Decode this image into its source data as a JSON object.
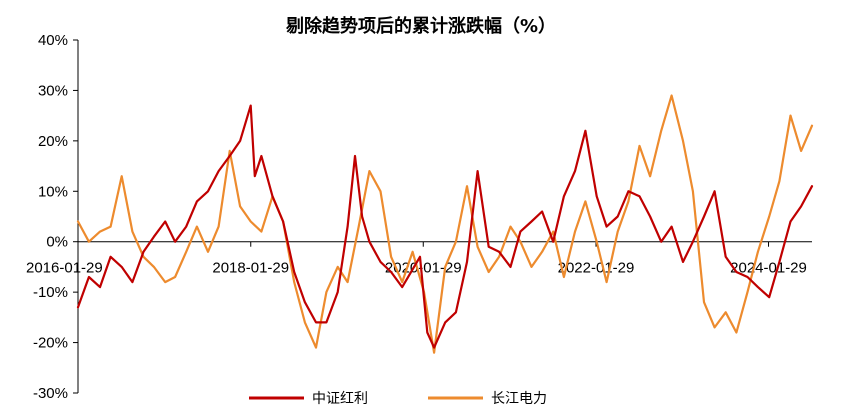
{
  "chart_data": {
    "type": "line",
    "title": "剔除趋势项后的累计涨跌幅（%）",
    "xlabel": "",
    "ylabel": "",
    "ylim": [
      -30,
      40
    ],
    "y_ticks": [
      "40%",
      "30%",
      "20%",
      "10%",
      "0%",
      "-10%",
      "-20%",
      "-30%"
    ],
    "y_tick_values": [
      40,
      30,
      20,
      10,
      0,
      -10,
      -20,
      -30
    ],
    "x_range": [
      "2016-01-29",
      "2024-07-31"
    ],
    "x_ticks": [
      "2016-01-29",
      "2018-01-29",
      "2020-01-29",
      "2022-01-29",
      "2024-01-29"
    ],
    "legend_position": "bottom",
    "colors": {
      "中证红利": "#c00000",
      "长江电力": "#ed8b2e"
    },
    "series": [
      {
        "name": "中证红利",
        "color": "#c00000",
        "points": [
          [
            "2016-01-29",
            -13
          ],
          [
            "2016-03-15",
            -7
          ],
          [
            "2016-05-01",
            -9
          ],
          [
            "2016-06-15",
            -3
          ],
          [
            "2016-08-01",
            -5
          ],
          [
            "2016-09-15",
            -8
          ],
          [
            "2016-11-01",
            -2
          ],
          [
            "2016-12-15",
            1
          ],
          [
            "2017-02-01",
            4
          ],
          [
            "2017-03-15",
            0
          ],
          [
            "2017-05-01",
            3
          ],
          [
            "2017-06-15",
            8
          ],
          [
            "2017-08-01",
            10
          ],
          [
            "2017-09-15",
            14
          ],
          [
            "2017-11-01",
            17
          ],
          [
            "2017-12-15",
            20
          ],
          [
            "2018-01-29",
            27
          ],
          [
            "2018-02-15",
            13
          ],
          [
            "2018-03-15",
            17
          ],
          [
            "2018-05-01",
            9
          ],
          [
            "2018-06-15",
            4
          ],
          [
            "2018-08-01",
            -6
          ],
          [
            "2018-09-15",
            -12
          ],
          [
            "2018-11-01",
            -16
          ],
          [
            "2018-12-15",
            -16
          ],
          [
            "2019-02-01",
            -10
          ],
          [
            "2019-03-15",
            3
          ],
          [
            "2019-04-15",
            17
          ],
          [
            "2019-05-15",
            5
          ],
          [
            "2019-06-15",
            0
          ],
          [
            "2019-08-01",
            -4
          ],
          [
            "2019-09-15",
            -6
          ],
          [
            "2019-11-01",
            -9
          ],
          [
            "2020-01-15",
            -3
          ],
          [
            "2020-02-15",
            -18
          ],
          [
            "2020-03-15",
            -21
          ],
          [
            "2020-05-01",
            -16
          ],
          [
            "2020-06-15",
            -14
          ],
          [
            "2020-08-01",
            -4
          ],
          [
            "2020-09-15",
            14
          ],
          [
            "2020-11-01",
            -1
          ],
          [
            "2020-12-15",
            -2
          ],
          [
            "2021-02-01",
            -5
          ],
          [
            "2021-03-15",
            2
          ],
          [
            "2021-05-01",
            4
          ],
          [
            "2021-06-15",
            6
          ],
          [
            "2021-08-01",
            0
          ],
          [
            "2021-09-15",
            9
          ],
          [
            "2021-11-01",
            14
          ],
          [
            "2021-12-15",
            22
          ],
          [
            "2022-02-01",
            9
          ],
          [
            "2022-03-15",
            3
          ],
          [
            "2022-05-01",
            5
          ],
          [
            "2022-06-15",
            10
          ],
          [
            "2022-08-01",
            9
          ],
          [
            "2022-09-15",
            5
          ],
          [
            "2022-11-01",
            0
          ],
          [
            "2022-12-15",
            3
          ],
          [
            "2023-02-01",
            -4
          ],
          [
            "2023-03-15",
            0
          ],
          [
            "2023-05-01",
            5
          ],
          [
            "2023-06-15",
            10
          ],
          [
            "2023-08-01",
            -3
          ],
          [
            "2023-09-15",
            -6
          ],
          [
            "2023-11-01",
            -7
          ],
          [
            "2023-12-15",
            -9
          ],
          [
            "2024-02-01",
            -11
          ],
          [
            "2024-03-15",
            -4
          ],
          [
            "2024-05-01",
            4
          ],
          [
            "2024-06-15",
            7
          ],
          [
            "2024-07-31",
            11
          ]
        ]
      },
      {
        "name": "长江电力",
        "color": "#ed8b2e",
        "points": [
          [
            "2016-01-29",
            4
          ],
          [
            "2016-03-15",
            0
          ],
          [
            "2016-05-01",
            2
          ],
          [
            "2016-06-15",
            3
          ],
          [
            "2016-08-01",
            13
          ],
          [
            "2016-09-15",
            2
          ],
          [
            "2016-11-01",
            -3
          ],
          [
            "2016-12-15",
            -5
          ],
          [
            "2017-02-01",
            -8
          ],
          [
            "2017-03-15",
            -7
          ],
          [
            "2017-05-01",
            -2
          ],
          [
            "2017-06-15",
            3
          ],
          [
            "2017-08-01",
            -2
          ],
          [
            "2017-09-15",
            3
          ],
          [
            "2017-11-01",
            18
          ],
          [
            "2017-12-15",
            7
          ],
          [
            "2018-01-29",
            4
          ],
          [
            "2018-03-15",
            2
          ],
          [
            "2018-05-01",
            9
          ],
          [
            "2018-06-15",
            4
          ],
          [
            "2018-08-01",
            -8
          ],
          [
            "2018-09-15",
            -16
          ],
          [
            "2018-11-01",
            -21
          ],
          [
            "2018-12-15",
            -10
          ],
          [
            "2019-02-01",
            -5
          ],
          [
            "2019-03-15",
            -8
          ],
          [
            "2019-05-01",
            3
          ],
          [
            "2019-06-15",
            14
          ],
          [
            "2019-08-01",
            10
          ],
          [
            "2019-09-15",
            -3
          ],
          [
            "2019-11-01",
            -8
          ],
          [
            "2019-12-15",
            -2
          ],
          [
            "2020-02-01",
            -10
          ],
          [
            "2020-03-15",
            -22
          ],
          [
            "2020-05-01",
            -5
          ],
          [
            "2020-06-15",
            0
          ],
          [
            "2020-08-01",
            11
          ],
          [
            "2020-09-15",
            -1
          ],
          [
            "2020-11-01",
            -6
          ],
          [
            "2020-12-15",
            -3
          ],
          [
            "2021-02-01",
            3
          ],
          [
            "2021-03-15",
            0
          ],
          [
            "2021-05-01",
            -5
          ],
          [
            "2021-06-15",
            -2
          ],
          [
            "2021-08-01",
            2
          ],
          [
            "2021-09-15",
            -7
          ],
          [
            "2021-11-01",
            2
          ],
          [
            "2021-12-15",
            8
          ],
          [
            "2022-02-01",
            0
          ],
          [
            "2022-03-15",
            -8
          ],
          [
            "2022-05-01",
            2
          ],
          [
            "2022-06-15",
            8
          ],
          [
            "2022-08-01",
            19
          ],
          [
            "2022-09-15",
            13
          ],
          [
            "2022-11-01",
            22
          ],
          [
            "2022-12-15",
            29
          ],
          [
            "2023-02-01",
            20
          ],
          [
            "2023-03-15",
            10
          ],
          [
            "2023-05-01",
            -12
          ],
          [
            "2023-06-15",
            -17
          ],
          [
            "2023-08-01",
            -14
          ],
          [
            "2023-09-15",
            -18
          ],
          [
            "2023-11-01",
            -10
          ],
          [
            "2023-12-15",
            -2
          ],
          [
            "2024-02-01",
            5
          ],
          [
            "2024-03-15",
            12
          ],
          [
            "2024-05-01",
            25
          ],
          [
            "2024-06-15",
            18
          ],
          [
            "2024-07-31",
            23
          ]
        ]
      }
    ]
  }
}
